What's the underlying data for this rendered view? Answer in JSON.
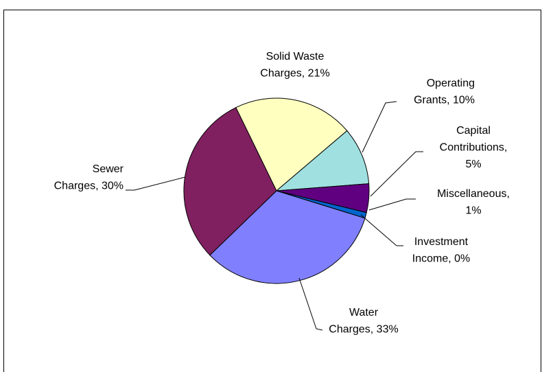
{
  "chart_data": {
    "type": "pie",
    "categories": [
      "Solid Waste Charges",
      "Operating Grants",
      "Capital Contributions",
      "Miscellaneous",
      "Investment Income",
      "Water Charges",
      "Sewer Charges"
    ],
    "values": [
      21,
      10,
      5,
      1,
      0,
      33,
      30
    ],
    "labels": [
      [
        "Solid Waste",
        "Charges, 21%"
      ],
      [
        "Operating",
        "Grants, 10%"
      ],
      [
        "Capital",
        "Contributions,",
        "5%"
      ],
      [
        "Miscellaneous,",
        "1%"
      ],
      [
        "Investment",
        "Income, 0%"
      ],
      [
        "Water",
        "Charges, 33%"
      ],
      [
        "Sewer",
        "Charges, 30%"
      ]
    ],
    "colors": [
      "#ffffc0",
      "#a0e0e0",
      "#600080",
      "#0066cc",
      "#ccccff",
      "#8080ff",
      "#802060"
    ]
  }
}
